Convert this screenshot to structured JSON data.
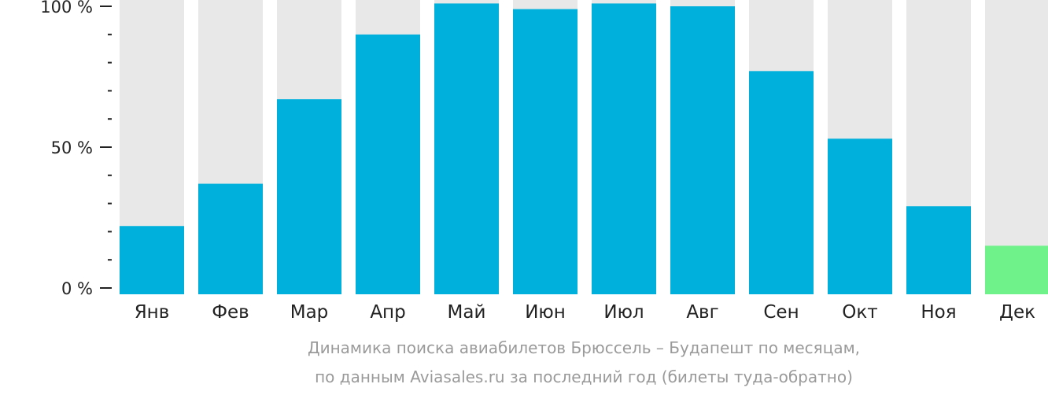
{
  "chart_data": {
    "type": "bar",
    "categories": [
      "Янв",
      "Фев",
      "Мар",
      "Апр",
      "Май",
      "Июн",
      "Июл",
      "Авг",
      "Сен",
      "Окт",
      "Ноя",
      "Дек"
    ],
    "values": [
      22,
      37,
      67,
      90,
      101,
      99,
      101,
      100,
      77,
      53,
      29,
      15
    ],
    "ylim": [
      0,
      100
    ],
    "y_ticks": [
      {
        "value": 100,
        "label": "100 %"
      },
      {
        "value": 50,
        "label": "50 %"
      },
      {
        "value": 0,
        "label": "0 %"
      }
    ],
    "highlight_index": 11,
    "colors": {
      "bar": "#00b0dc",
      "highlight": "#6ff28a",
      "background_bar": "#e8e8e8",
      "axis": "#222222"
    }
  },
  "caption": {
    "line1": "Динамика поиска авиабилетов Брюссель – Будапешт по месяцам,",
    "line2": "по данным Aviasales.ru за последний год (билеты туда-обратно)"
  }
}
